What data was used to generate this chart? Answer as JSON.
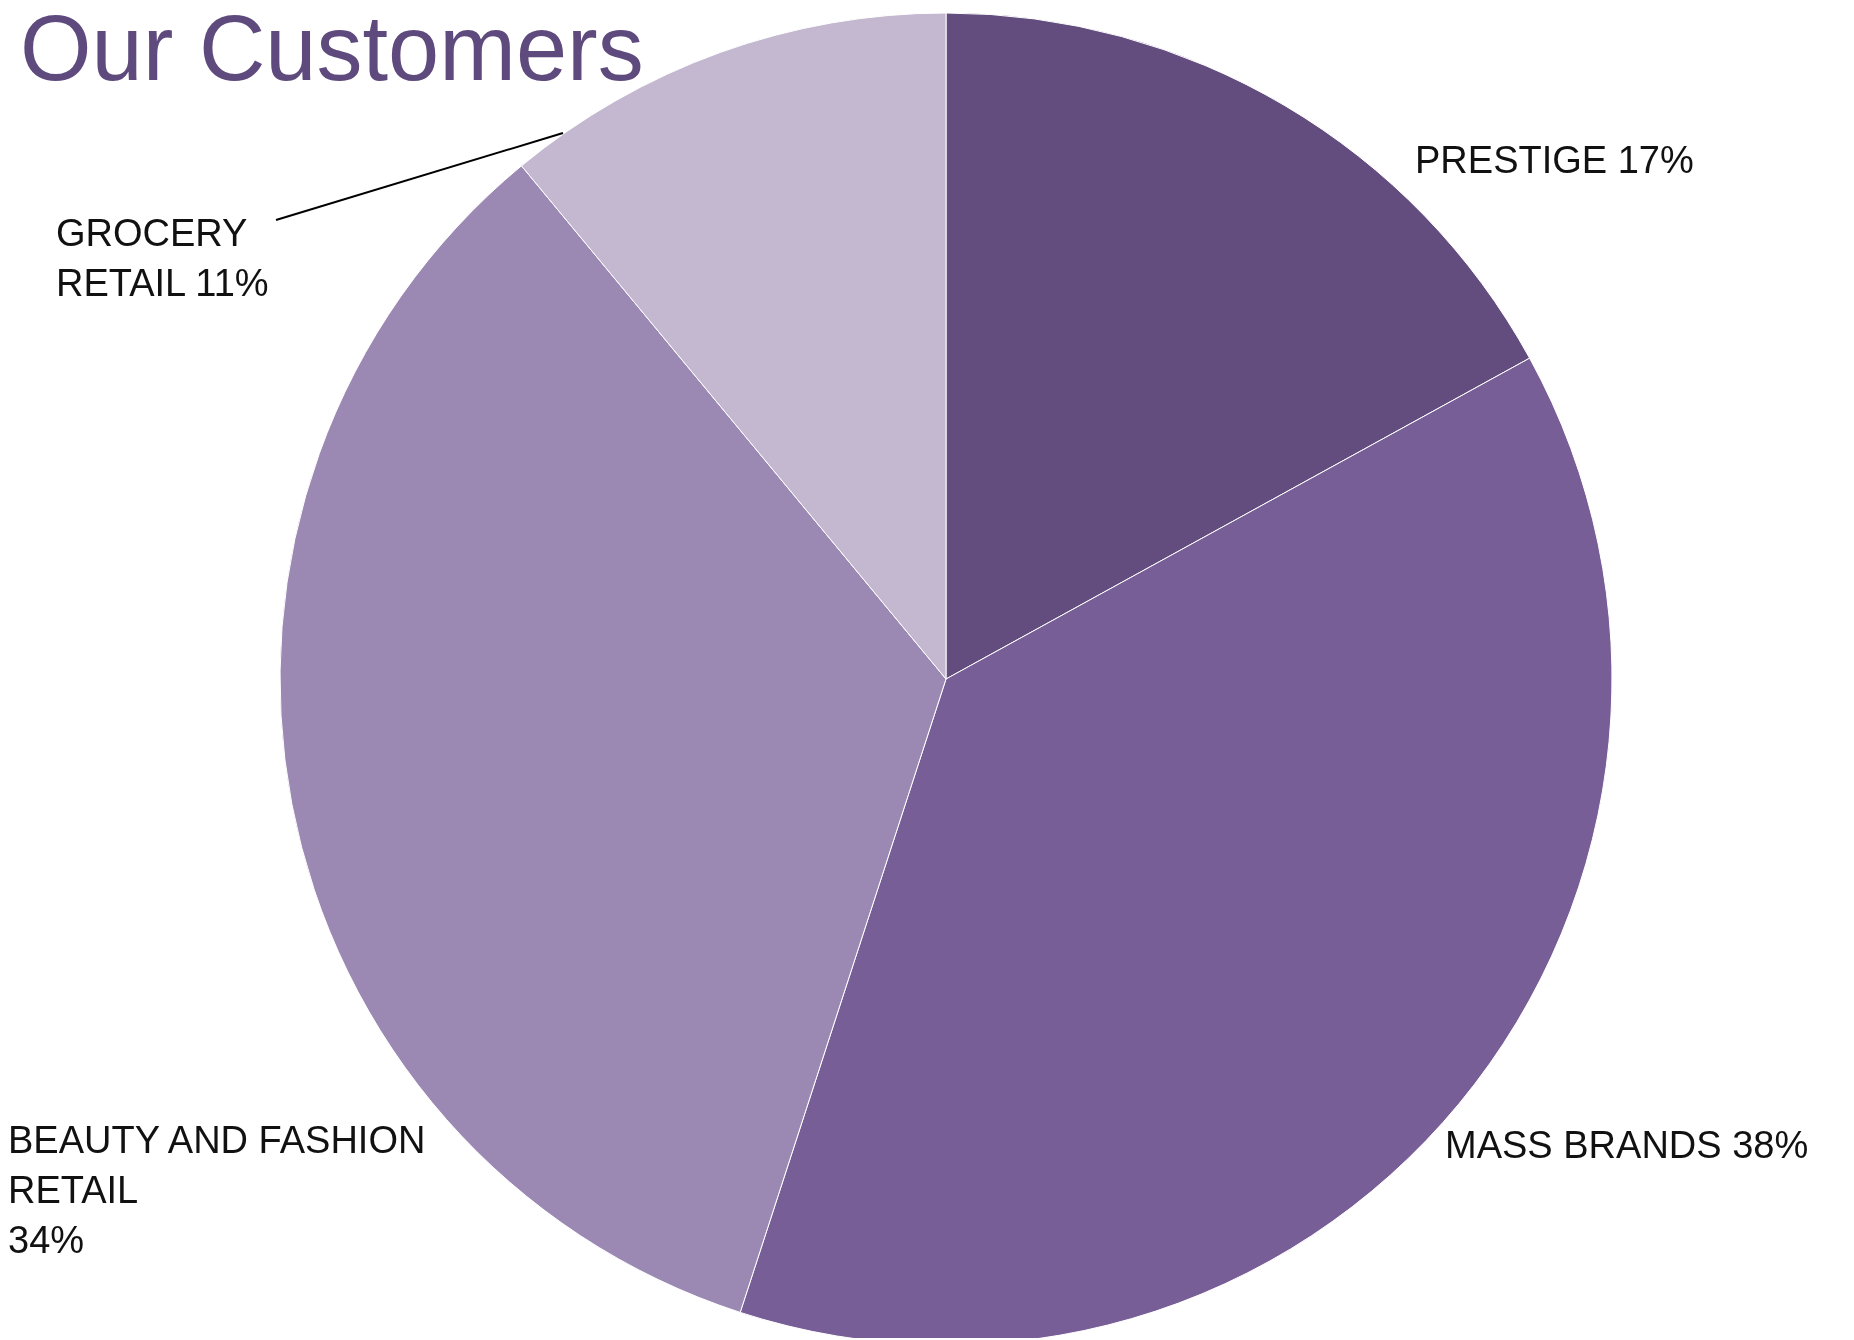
{
  "chart_data": {
    "type": "pie",
    "title": "Our Customers",
    "categories": [
      "PRESTIGE",
      "MASS BRANDS",
      "BEAUTY AND FASHION RETAIL",
      "GROCERY RETAIL"
    ],
    "values": [
      17,
      38,
      34,
      11
    ],
    "value_labels": [
      "17%",
      "38%",
      "34%",
      "11%"
    ],
    "colors": [
      "#634d7e",
      "#775e96",
      "#9b89b3",
      "#c3b8d0"
    ],
    "data_labels": true
  }
}
